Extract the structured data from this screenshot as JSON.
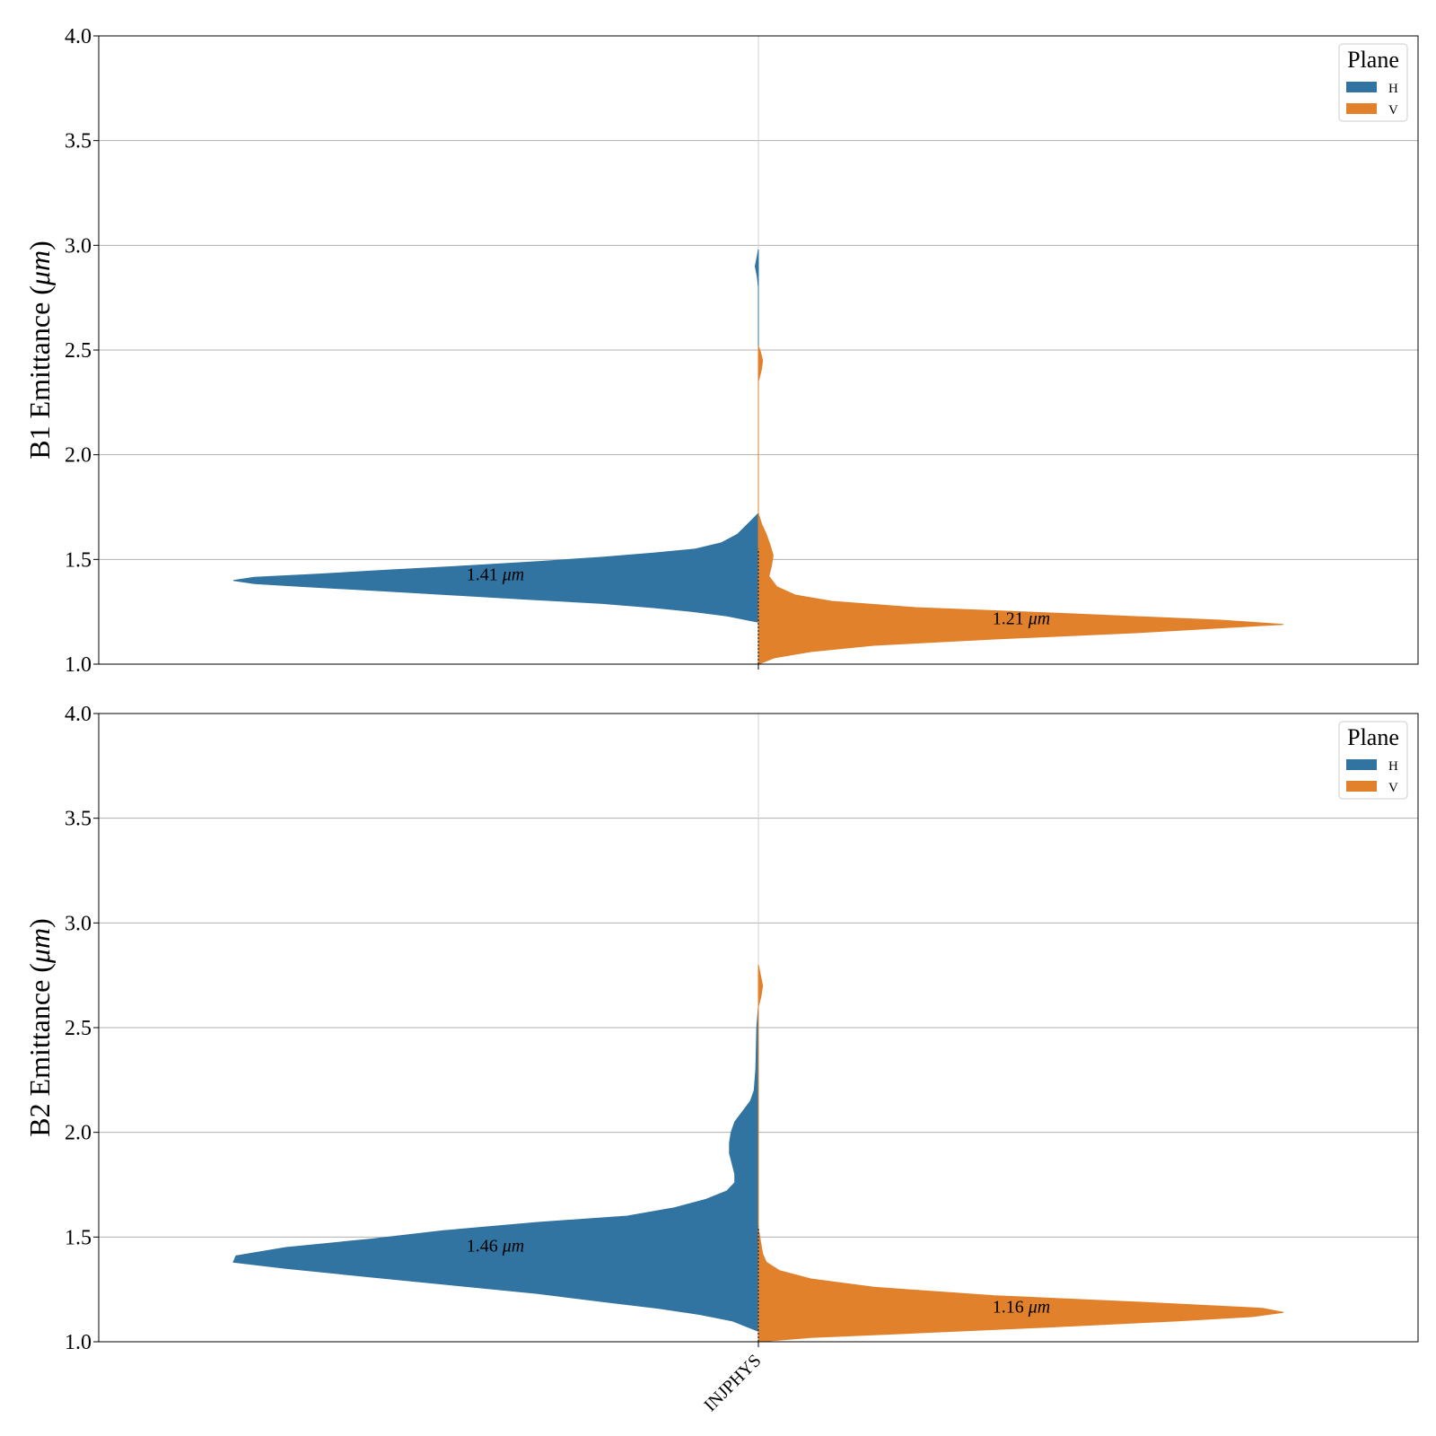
{
  "chart_data": [
    {
      "type": "violin",
      "panel": "B1",
      "ylabel": "B1 Emittance",
      "ylabel_unit": "μm",
      "ylim": [
        1.0,
        4.0
      ],
      "yticks": [
        "1.0",
        "1.5",
        "2.0",
        "2.5",
        "3.0",
        "3.5",
        "4.0"
      ],
      "grid": true,
      "legend": {
        "title": "Plane",
        "position": "top-right",
        "entries": [
          "H",
          "V"
        ]
      },
      "categories": [
        "INJPHYS"
      ],
      "series": [
        {
          "name": "H",
          "color": "#3274a1",
          "side": "left",
          "median_label": "1.41",
          "label_unit": "μm",
          "label_y": 1.43,
          "profile": [
            [
              1.2,
              0.0
            ],
            [
              1.23,
              0.06
            ],
            [
              1.25,
              0.12
            ],
            [
              1.27,
              0.2
            ],
            [
              1.29,
              0.3
            ],
            [
              1.31,
              0.44
            ],
            [
              1.33,
              0.58
            ],
            [
              1.35,
              0.72
            ],
            [
              1.37,
              0.86
            ],
            [
              1.385,
              0.96
            ],
            [
              1.4,
              1.0
            ],
            [
              1.415,
              0.96
            ],
            [
              1.43,
              0.84
            ],
            [
              1.45,
              0.7
            ],
            [
              1.47,
              0.55
            ],
            [
              1.49,
              0.42
            ],
            [
              1.51,
              0.3
            ],
            [
              1.53,
              0.2
            ],
            [
              1.55,
              0.12
            ],
            [
              1.58,
              0.07
            ],
            [
              1.62,
              0.04
            ],
            [
              1.67,
              0.02
            ],
            [
              1.72,
              0.0
            ],
            [
              2.8,
              0.0
            ],
            [
              2.85,
              0.002
            ],
            [
              2.9,
              0.006
            ],
            [
              2.95,
              0.002
            ],
            [
              2.98,
              0.0
            ]
          ]
        },
        {
          "name": "V",
          "color": "#e1812c",
          "side": "right",
          "median_label": "1.21",
          "label_unit": "μm",
          "label_y": 1.22,
          "profile": [
            [
              1.0,
              0.0
            ],
            [
              1.03,
              0.03
            ],
            [
              1.06,
              0.1
            ],
            [
              1.09,
              0.22
            ],
            [
              1.12,
              0.45
            ],
            [
              1.15,
              0.72
            ],
            [
              1.18,
              0.93
            ],
            [
              1.19,
              1.0
            ],
            [
              1.21,
              0.88
            ],
            [
              1.24,
              0.6
            ],
            [
              1.27,
              0.3
            ],
            [
              1.3,
              0.14
            ],
            [
              1.33,
              0.07
            ],
            [
              1.37,
              0.035
            ],
            [
              1.42,
              0.02
            ],
            [
              1.47,
              0.025
            ],
            [
              1.52,
              0.028
            ],
            [
              1.57,
              0.022
            ],
            [
              1.62,
              0.015
            ],
            [
              1.67,
              0.006
            ],
            [
              1.72,
              0.0
            ],
            [
              2.35,
              0.0
            ],
            [
              2.41,
              0.006
            ],
            [
              2.45,
              0.008
            ],
            [
              2.49,
              0.004
            ],
            [
              2.52,
              0.0
            ]
          ]
        }
      ]
    },
    {
      "type": "violin",
      "panel": "B2",
      "ylabel": "B2 Emittance",
      "ylabel_unit": "μm",
      "ylim": [
        1.0,
        4.0
      ],
      "yticks": [
        "1.0",
        "1.5",
        "2.0",
        "2.5",
        "3.0",
        "3.5",
        "4.0"
      ],
      "grid": true,
      "legend": {
        "title": "Plane",
        "position": "top-right",
        "entries": [
          "H",
          "V"
        ]
      },
      "categories": [
        "INJPHYS"
      ],
      "series": [
        {
          "name": "H",
          "color": "#3274a1",
          "side": "left",
          "median_label": "1.46",
          "label_unit": "μm",
          "label_y": 1.46,
          "profile": [
            [
              1.05,
              0.0
            ],
            [
              1.07,
              0.02
            ],
            [
              1.1,
              0.05
            ],
            [
              1.13,
              0.11
            ],
            [
              1.16,
              0.19
            ],
            [
              1.19,
              0.29
            ],
            [
              1.23,
              0.42
            ],
            [
              1.27,
              0.58
            ],
            [
              1.31,
              0.74
            ],
            [
              1.35,
              0.9
            ],
            [
              1.38,
              1.0
            ],
            [
              1.41,
              0.995
            ],
            [
              1.45,
              0.9
            ],
            [
              1.49,
              0.74
            ],
            [
              1.53,
              0.6
            ],
            [
              1.57,
              0.42
            ],
            [
              1.6,
              0.25
            ],
            [
              1.64,
              0.16
            ],
            [
              1.68,
              0.1
            ],
            [
              1.72,
              0.06
            ],
            [
              1.76,
              0.045
            ],
            [
              1.8,
              0.045
            ],
            [
              1.85,
              0.05
            ],
            [
              1.9,
              0.055
            ],
            [
              1.95,
              0.055
            ],
            [
              2.0,
              0.052
            ],
            [
              2.05,
              0.045
            ],
            [
              2.1,
              0.03
            ],
            [
              2.15,
              0.015
            ],
            [
              2.2,
              0.008
            ],
            [
              2.3,
              0.005
            ],
            [
              2.4,
              0.004
            ],
            [
              2.5,
              0.003
            ],
            [
              2.6,
              0.0
            ]
          ]
        },
        {
          "name": "V",
          "color": "#e1812c",
          "side": "right",
          "median_label": "1.16",
          "label_unit": "μm",
          "label_y": 1.17,
          "profile": [
            [
              1.0,
              0.0
            ],
            [
              1.02,
              0.1
            ],
            [
              1.04,
              0.28
            ],
            [
              1.07,
              0.55
            ],
            [
              1.1,
              0.8
            ],
            [
              1.12,
              0.94
            ],
            [
              1.14,
              1.0
            ],
            [
              1.16,
              0.96
            ],
            [
              1.19,
              0.72
            ],
            [
              1.22,
              0.45
            ],
            [
              1.26,
              0.22
            ],
            [
              1.3,
              0.1
            ],
            [
              1.34,
              0.04
            ],
            [
              1.38,
              0.015
            ],
            [
              1.42,
              0.008
            ],
            [
              1.48,
              0.004
            ],
            [
              1.54,
              0.0
            ],
            [
              2.6,
              0.0
            ],
            [
              2.65,
              0.005
            ],
            [
              2.7,
              0.008
            ],
            [
              2.75,
              0.004
            ],
            [
              2.8,
              0.0
            ]
          ]
        }
      ]
    }
  ]
}
